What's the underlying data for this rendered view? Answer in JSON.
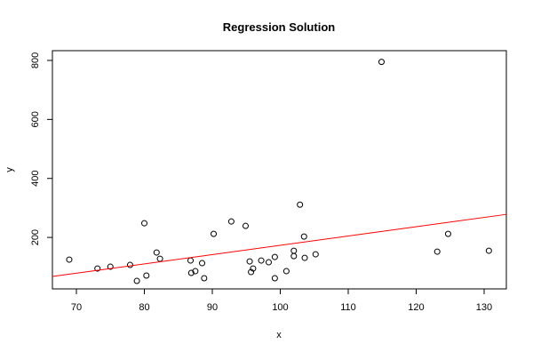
{
  "chart_data": {
    "type": "scatter",
    "title": "Regression Solution",
    "x_label": "x",
    "y_label": "y",
    "x": [
      68.95,
      73.1,
      75.0,
      77.9,
      78.9,
      80.0,
      80.3,
      81.8,
      82.3,
      86.8,
      86.9,
      87.5,
      88.5,
      88.8,
      90.2,
      92.8,
      94.9,
      95.5,
      95.7,
      96.0,
      97.2,
      98.3,
      99.2,
      99.2,
      100.9,
      102.0,
      102.0,
      102.9,
      103.5,
      103.6,
      105.2,
      114.9,
      123.1,
      124.7,
      130.7
    ],
    "values": [
      124.8,
      94.7,
      100.8,
      106.8,
      52.6,
      248,
      70.7,
      148.9,
      127.8,
      121.8,
      79.7,
      85.7,
      112.8,
      61.7,
      212,
      254,
      239,
      118.8,
      82.7,
      94.7,
      121.8,
      115.8,
      133.8,
      61.7,
      85.7,
      154.9,
      136.8,
      311,
      203,
      130.8,
      142.9,
      795,
      151.9,
      212,
      154.9
    ],
    "color": "#000000",
    "regression": {
      "intercept": -141.7,
      "slope": 3.15,
      "color": "#ff0000"
    },
    "xlim": [
      66.47,
      133.27
    ],
    "ylim": [
      25.6,
      833
    ],
    "xticks": [
      70,
      80,
      90,
      100,
      110,
      120,
      130
    ],
    "yticks": [
      200,
      400,
      600,
      800
    ]
  }
}
